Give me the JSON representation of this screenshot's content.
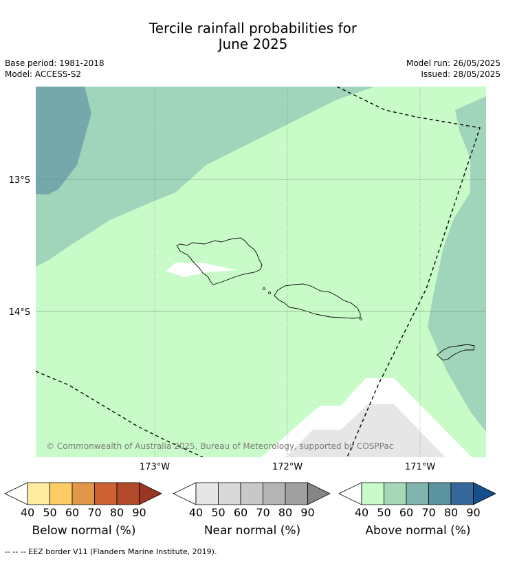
{
  "title_line1": "Tercile rainfall probabilities for",
  "title_line2": "June 2025",
  "meta": {
    "base_period": "Base period: 1981-2018",
    "model": "Model: ACCESS-S2",
    "model_run": "Model run: 26/05/2025",
    "issued": "Issued: 28/05/2025"
  },
  "map": {
    "lat_labels": [
      "13°S",
      "14°S"
    ],
    "lon_labels": [
      "173°W",
      "172°W",
      "171°W"
    ],
    "credit": "© Commonwealth of Australia 2025, Bureau of Meteorology, supported by COSPPac"
  },
  "colorbars": [
    {
      "title": "Below normal (%)",
      "ticks": [
        "40",
        "50",
        "60",
        "70",
        "80",
        "90"
      ],
      "colors": [
        "#feeca0",
        "#fdcd65",
        "#e1964a",
        "#cc6232",
        "#b24a2a",
        "#983722"
      ]
    },
    {
      "title": "Near normal (%)",
      "ticks": [
        "40",
        "50",
        "60",
        "70",
        "80",
        "90"
      ],
      "colors": [
        "#e6e6e6",
        "#d9d9d9",
        "#c8c8c8",
        "#b4b4b4",
        "#a0a0a0",
        "#858585"
      ]
    },
    {
      "title": "Above normal (%)",
      "ticks": [
        "40",
        "50",
        "60",
        "70",
        "80",
        "90"
      ],
      "colors": [
        "#c9fbc9",
        "#a4d8b8",
        "#80b3ad",
        "#5b93a1",
        "#35679a",
        "#174e8c"
      ]
    }
  ],
  "eez_note": "--  --  -- EEZ border V11 (Flanders Marine Institute, 2019)."
}
